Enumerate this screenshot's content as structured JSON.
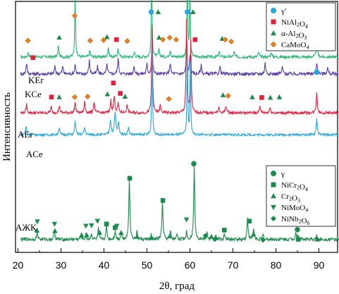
{
  "chart_data": {
    "type": "line",
    "xlabel": "2θ, град",
    "ylabel": "Интенсивность",
    "xlim": [
      20,
      95
    ],
    "x_ticks": [
      20,
      30,
      40,
      50,
      60,
      70,
      80,
      90
    ],
    "y_ticks_shown": false,
    "series": [
      {
        "name": "KEr",
        "color": "#2bb673",
        "baseline": 0.795,
        "noise": 0.006,
        "peaks": [
          [
            22.4,
            0.02,
            0.25
          ],
          [
            29.4,
            0.05,
            0.25
          ],
          [
            33.3,
            0.27,
            0.22
          ],
          [
            36.7,
            0.025,
            0.3
          ],
          [
            41.0,
            0.04,
            0.3
          ],
          [
            43.3,
            0.035,
            0.3
          ],
          [
            47.1,
            0.02,
            0.3
          ],
          [
            51.1,
            0.36,
            0.22
          ],
          [
            52.8,
            0.03,
            0.3
          ],
          [
            55.4,
            0.03,
            0.3
          ],
          [
            59.4,
            0.38,
            0.2
          ],
          [
            60.0,
            0.3,
            0.2
          ],
          [
            66.8,
            0.02,
            0.3
          ],
          [
            70.3,
            0.02,
            0.3
          ],
          [
            76.0,
            0.02,
            0.3
          ],
          [
            78.9,
            0.02,
            0.3
          ],
          [
            89.5,
            0.065,
            0.3
          ]
        ]
      },
      {
        "name": "KCe",
        "color": "#5b3ea6",
        "baseline": 0.725,
        "noise": 0.007,
        "peaks": [
          [
            22.0,
            0.045,
            0.3
          ],
          [
            28.6,
            0.03,
            0.3
          ],
          [
            30.4,
            0.03,
            0.3
          ],
          [
            33.3,
            0.04,
            0.3
          ],
          [
            36.6,
            0.055,
            0.3
          ],
          [
            38.5,
            0.03,
            0.3
          ],
          [
            40.7,
            0.04,
            0.3
          ],
          [
            43.3,
            0.065,
            0.3
          ],
          [
            47.0,
            0.035,
            0.3
          ],
          [
            50.0,
            0.04,
            0.3
          ],
          [
            51.2,
            0.15,
            0.25
          ],
          [
            55.4,
            0.045,
            0.3
          ],
          [
            59.2,
            0.08,
            0.3
          ],
          [
            60.0,
            0.07,
            0.3
          ],
          [
            62.6,
            0.035,
            0.3
          ],
          [
            67.0,
            0.03,
            0.3
          ],
          [
            77.5,
            0.045,
            0.3
          ],
          [
            81.5,
            0.03,
            0.3
          ],
          [
            89.5,
            0.045,
            0.35
          ],
          [
            92.0,
            0.025,
            0.35
          ]
        ]
      },
      {
        "name": "AEr",
        "color": "#e0203c",
        "baseline": 0.565,
        "noise": 0.006,
        "peaks": [
          [
            22.0,
            0.035,
            0.3
          ],
          [
            27.7,
            0.025,
            0.3
          ],
          [
            29.6,
            0.03,
            0.3
          ],
          [
            33.3,
            0.045,
            0.3
          ],
          [
            35.5,
            0.045,
            0.3
          ],
          [
            37.7,
            0.045,
            0.35
          ],
          [
            41.6,
            0.05,
            0.3
          ],
          [
            42.4,
            0.065,
            0.35
          ],
          [
            43.3,
            0.04,
            0.3
          ],
          [
            45.4,
            0.03,
            0.35
          ],
          [
            51.2,
            0.36,
            0.25
          ],
          [
            53.1,
            0.03,
            0.35
          ],
          [
            59.2,
            0.38,
            0.25
          ],
          [
            60.2,
            0.3,
            0.25
          ],
          [
            66.7,
            0.02,
            0.35
          ],
          [
            68.4,
            0.03,
            0.35
          ],
          [
            76.3,
            0.025,
            0.35
          ],
          [
            78.6,
            0.02,
            0.35
          ],
          [
            89.5,
            0.085,
            0.3
          ]
        ]
      },
      {
        "name": "ACe",
        "color": "#2aa6df",
        "baseline": 0.475,
        "noise": 0.005,
        "peaks": [
          [
            21.9,
            0.035,
            0.3
          ],
          [
            29.6,
            0.03,
            0.3
          ],
          [
            33.3,
            0.055,
            0.3
          ],
          [
            35.5,
            0.03,
            0.35
          ],
          [
            41.5,
            0.06,
            0.35
          ],
          [
            42.6,
            0.09,
            0.4
          ],
          [
            43.4,
            0.05,
            0.3
          ],
          [
            45.7,
            0.03,
            0.35
          ],
          [
            51.2,
            0.36,
            0.22
          ],
          [
            59.4,
            0.38,
            0.2
          ],
          [
            60.1,
            0.3,
            0.2
          ],
          [
            89.5,
            0.065,
            0.3
          ]
        ]
      },
      {
        "name": "АЖК",
        "color": "#1c8a4a",
        "baseline": 0.045,
        "noise": 0.007,
        "peaks": [
          [
            24.5,
            0.04,
            0.25
          ],
          [
            28.5,
            0.035,
            0.25
          ],
          [
            34.7,
            0.02,
            0.25
          ],
          [
            35.8,
            0.02,
            0.25
          ],
          [
            37.1,
            0.025,
            0.25
          ],
          [
            38.7,
            0.045,
            0.25
          ],
          [
            40.6,
            0.06,
            0.25
          ],
          [
            42.6,
            0.04,
            0.25
          ],
          [
            44.0,
            0.03,
            0.25
          ],
          [
            45.9,
            0.255,
            0.3
          ],
          [
            47.7,
            0.03,
            0.25
          ],
          [
            51.0,
            0.02,
            0.25
          ],
          [
            53.6,
            0.155,
            0.3
          ],
          [
            55.5,
            0.03,
            0.25
          ],
          [
            57.0,
            0.025,
            0.25
          ],
          [
            59.2,
            0.035,
            0.25
          ],
          [
            61.0,
            0.3,
            0.3
          ],
          [
            64.0,
            0.03,
            0.25
          ],
          [
            66.0,
            0.02,
            0.25
          ],
          [
            68.0,
            0.025,
            0.25
          ],
          [
            73.4,
            0.085,
            0.3
          ],
          [
            74.8,
            0.045,
            0.25
          ],
          [
            77.0,
            0.02,
            0.25
          ],
          [
            84.6,
            0.03,
            0.25
          ],
          [
            85.1,
            0.02,
            0.25
          ],
          [
            89.5,
            0.015,
            0.25
          ]
        ]
      }
    ],
    "markers": [
      {
        "s": "a",
        "x": 29.6,
        "y": 0.875
      },
      {
        "s": "a",
        "x": 40.7,
        "y": 0.877
      },
      {
        "s": "a",
        "x": 52.8,
        "y": 0.875
      },
      {
        "s": "a",
        "x": 67.5,
        "y": 0.87
      },
      {
        "s": "a",
        "x": 78.6,
        "y": 0.858
      },
      {
        "s": "a",
        "x": 80.7,
        "y": 0.86
      },
      {
        "s": "a",
        "x": 92.0,
        "y": 0.86
      },
      {
        "s": "n",
        "x": 42.9,
        "y": 0.866
      },
      {
        "s": "n",
        "x": 61.2,
        "y": 0.866
      },
      {
        "s": "m",
        "x": 22.3,
        "y": 0.862
      },
      {
        "s": "m",
        "x": 33.2,
        "y": 0.964
      },
      {
        "s": "m",
        "x": 36.8,
        "y": 0.862
      },
      {
        "s": "m",
        "x": 39.9,
        "y": 0.864
      },
      {
        "s": "m",
        "x": 45.4,
        "y": 0.86
      },
      {
        "s": "m",
        "x": 53.7,
        "y": 0.866
      },
      {
        "s": "m",
        "x": 55.3,
        "y": 0.874
      },
      {
        "s": "m",
        "x": 56.8,
        "y": 0.866
      },
      {
        "s": "m",
        "x": 68.2,
        "y": 0.866
      },
      {
        "s": "m",
        "x": 69.6,
        "y": 0.858
      },
      {
        "s": "g",
        "x": 51.0,
        "y": 0.98
      },
      {
        "s": "g",
        "x": 59.4,
        "y": 0.98
      },
      {
        "s": "g",
        "x": 89.5,
        "y": 0.895
      },
      {
        "s": "a",
        "x": 52.6,
        "y": 0.98
      },
      {
        "s": "a",
        "x": 60.7,
        "y": 0.98
      },
      {
        "s": "n",
        "x": 23.5,
        "y": 0.792
      },
      {
        "s": "n",
        "x": 27.8,
        "y": 0.63
      },
      {
        "s": "a",
        "x": 29.6,
        "y": 0.63
      },
      {
        "s": "m",
        "x": 33.2,
        "y": 0.63
      },
      {
        "s": "m",
        "x": 36.2,
        "y": 0.632
      },
      {
        "s": "a",
        "x": 40.8,
        "y": 0.642
      },
      {
        "s": "n",
        "x": 42.2,
        "y": 0.688
      },
      {
        "s": "n",
        "x": 43.8,
        "y": 0.645
      },
      {
        "s": "a",
        "x": 44.9,
        "y": 0.632
      },
      {
        "s": "m",
        "x": 55.1,
        "y": 0.622
      },
      {
        "s": "a",
        "x": 67.7,
        "y": 0.638
      },
      {
        "s": "m",
        "x": 68.9,
        "y": 0.635
      },
      {
        "s": "a",
        "x": 74.5,
        "y": 0.63
      },
      {
        "s": "n",
        "x": 76.7,
        "y": 0.628
      },
      {
        "s": "a",
        "x": 78.7,
        "y": 0.628
      },
      {
        "s": "a",
        "x": 80.8,
        "y": 0.63
      },
      {
        "s": "g",
        "x": 89.5,
        "y": 0.732
      },
      {
        "s": "c",
        "x": 60.9,
        "y": 0.356
      },
      {
        "s": "sq",
        "x": 46.0,
        "y": 0.296
      },
      {
        "s": "sq",
        "x": 53.7,
        "y": 0.205
      },
      {
        "s": "sq",
        "x": 40.6,
        "y": 0.108
      },
      {
        "s": "sq",
        "x": 42.6,
        "y": 0.093
      },
      {
        "s": "sq",
        "x": 68.0,
        "y": 0.083
      },
      {
        "s": "sq",
        "x": 73.8,
        "y": 0.12
      },
      {
        "s": "sq",
        "x": 85.2,
        "y": 0.045
      },
      {
        "s": "c",
        "x": 85.0,
        "y": 0.085
      },
      {
        "s": "t",
        "x": 24.4,
        "y": 0.082
      },
      {
        "s": "t",
        "x": 28.6,
        "y": 0.08
      },
      {
        "s": "t",
        "x": 34.8,
        "y": 0.062
      },
      {
        "s": "t",
        "x": 36.0,
        "y": 0.062
      },
      {
        "s": "t",
        "x": 39.0,
        "y": 0.072
      },
      {
        "s": "t",
        "x": 44.0,
        "y": 0.072
      },
      {
        "s": "t",
        "x": 47.7,
        "y": 0.056
      },
      {
        "s": "t",
        "x": 51.0,
        "y": 0.051
      },
      {
        "s": "t",
        "x": 55.3,
        "y": 0.058
      },
      {
        "s": "t",
        "x": 65.0,
        "y": 0.056
      },
      {
        "s": "t",
        "x": 74.8,
        "y": 0.066
      },
      {
        "s": "t",
        "x": 89.6,
        "y": 0.045
      },
      {
        "s": "v",
        "x": 24.5,
        "y": 0.118
      },
      {
        "s": "v",
        "x": 28.5,
        "y": 0.108
      },
      {
        "s": "v",
        "x": 35.8,
        "y": 0.1
      },
      {
        "s": "v",
        "x": 37.1,
        "y": 0.102
      },
      {
        "s": "v",
        "x": 38.5,
        "y": 0.12
      },
      {
        "s": "v",
        "x": 43.0,
        "y": 0.1
      },
      {
        "s": "v",
        "x": 59.2,
        "y": 0.126
      },
      {
        "s": "d",
        "x": 63.6,
        "y": 0.06
      },
      {
        "s": "d",
        "x": 65.8,
        "y": 0.045
      },
      {
        "s": "d",
        "x": 77.0,
        "y": 0.042
      }
    ],
    "legend_top": [
      {
        "sym": "g",
        "color": "#2aa6df",
        "label": "γ′"
      },
      {
        "sym": "n",
        "color": "#e0203c",
        "label": "NiAl2O4"
      },
      {
        "sym": "a",
        "color": "#1c8a4a",
        "label": "α-Al2O3"
      },
      {
        "sym": "m",
        "color": "#e8821e",
        "label": "CaMoO4"
      }
    ],
    "legend_bottom": [
      {
        "sym": "c",
        "color": "#1c8a4a",
        "label": "γ"
      },
      {
        "sym": "sq",
        "color": "#1c8a4a",
        "label": "NiCr2O4"
      },
      {
        "sym": "t",
        "color": "#1c8a4a",
        "label": "Cr2O3"
      },
      {
        "sym": "v",
        "color": "#1c8a4a",
        "label": "NiMoO4"
      },
      {
        "sym": "d",
        "color": "#1c8a4a",
        "label": "NiNb2O6"
      }
    ],
    "colors": {
      "g": "#2aa6df",
      "n": "#e0203c",
      "a": "#1c8a4a",
      "m": "#e8821e",
      "c": "#1c8a4a",
      "sq": "#1c8a4a",
      "t": "#1c8a4a",
      "v": "#1c8a4a",
      "d": "#1c8a4a"
    }
  }
}
